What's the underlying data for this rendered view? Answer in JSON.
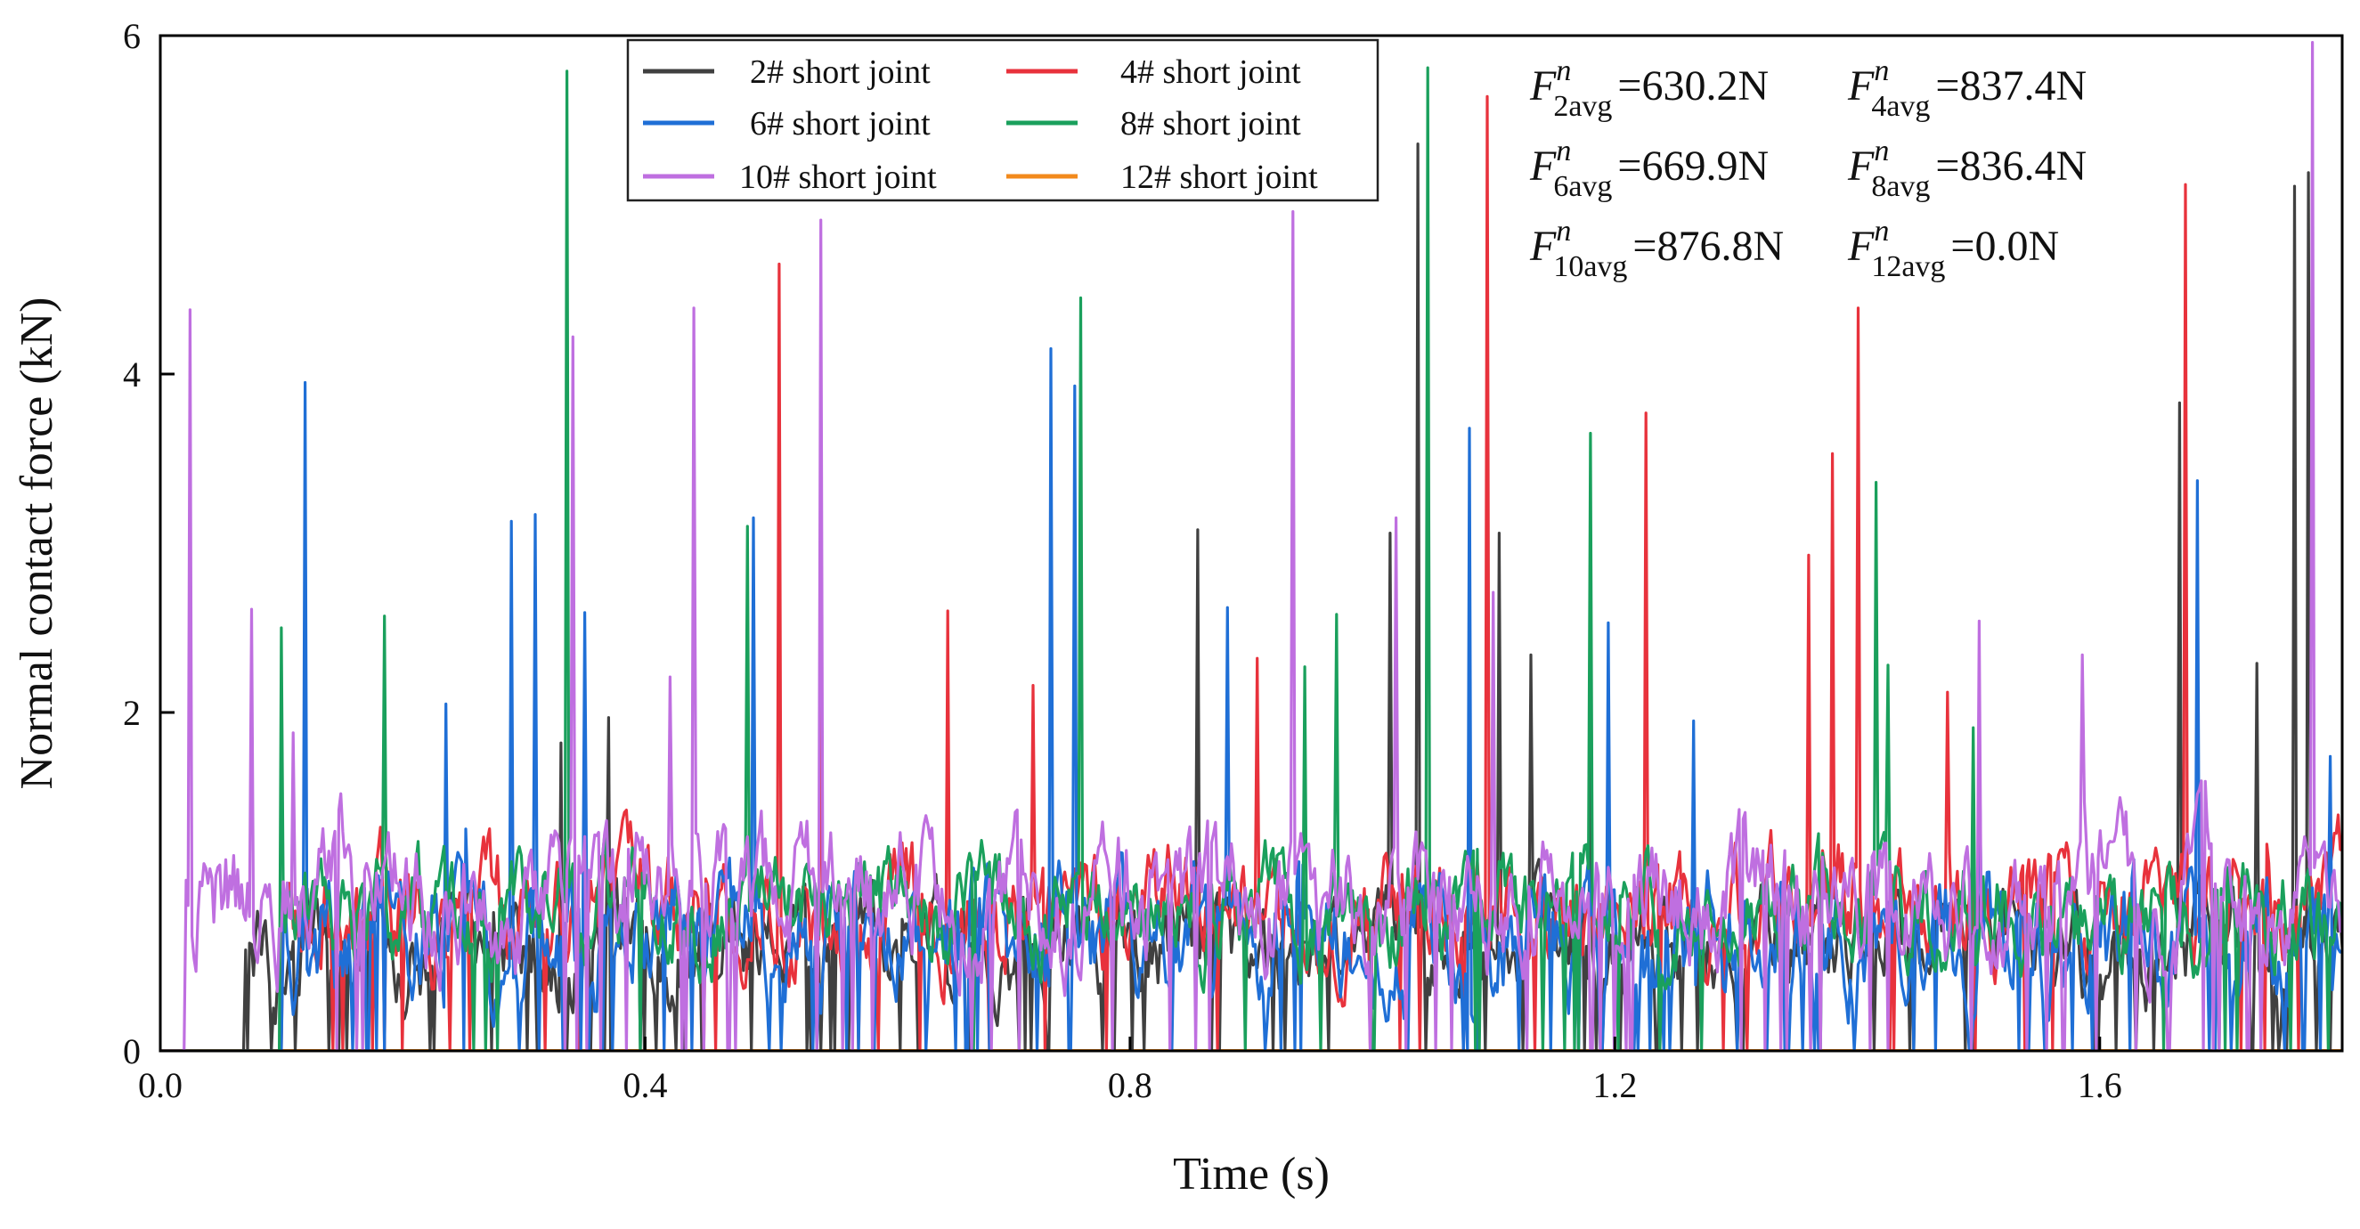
{
  "chart_data": {
    "type": "line",
    "xlabel": "Time (s)",
    "ylabel": "Normal contact force (kN)",
    "xlim": [
      0.0,
      1.8
    ],
    "ylim": [
      0,
      6
    ],
    "x_ticks": [
      {
        "value": 0.0,
        "label": "0.0"
      },
      {
        "value": 0.4,
        "label": "0.4"
      },
      {
        "value": 0.8,
        "label": "0.8"
      },
      {
        "value": 1.2,
        "label": "1.2"
      },
      {
        "value": 1.6,
        "label": "1.6"
      }
    ],
    "y_ticks": [
      {
        "value": 0,
        "label": "0"
      },
      {
        "value": 2,
        "label": "2"
      },
      {
        "value": 4,
        "label": "4"
      },
      {
        "value": 6,
        "label": "6"
      }
    ],
    "legend_position": "top-center",
    "series": [
      {
        "name": "2# short joint",
        "color": "#404040",
        "start": 0.07,
        "mean": 0.62,
        "noise": 0.45,
        "zero_dips": 0.08,
        "peaks": [
          [
            0.33,
            1.82
          ],
          [
            0.37,
            1.97
          ],
          [
            0.855,
            3.08
          ],
          [
            1.015,
            3.06
          ],
          [
            1.038,
            5.36
          ],
          [
            1.105,
            3.06
          ],
          [
            1.13,
            2.34
          ],
          [
            1.18,
            1.85
          ],
          [
            1.665,
            3.83
          ],
          [
            1.73,
            2.29
          ],
          [
            1.76,
            5.11
          ],
          [
            1.772,
            5.19
          ]
        ]
      },
      {
        "name": "4# short joint",
        "color": "#e8323c",
        "start": 0.1,
        "mean": 0.83,
        "noise": 0.5,
        "zero_dips": 0.04,
        "peaks": [
          [
            0.51,
            4.65
          ],
          [
            0.545,
            2.2
          ],
          [
            0.65,
            2.6
          ],
          [
            0.72,
            2.16
          ],
          [
            0.905,
            2.32
          ],
          [
            1.095,
            5.64
          ],
          [
            1.225,
            3.77
          ],
          [
            1.36,
            2.93
          ],
          [
            1.38,
            3.53
          ],
          [
            1.4,
            4.39
          ],
          [
            1.475,
            2.12
          ],
          [
            1.67,
            5.12
          ]
        ]
      },
      {
        "name": "6# short joint",
        "color": "#1f6fd6",
        "start": 0.1,
        "mean": 0.67,
        "noise": 0.55,
        "zero_dips": 0.07,
        "peaks": [
          [
            0.12,
            3.95
          ],
          [
            0.235,
            2.05
          ],
          [
            0.29,
            3.13
          ],
          [
            0.31,
            3.17
          ],
          [
            0.35,
            2.59
          ],
          [
            0.49,
            3.15
          ],
          [
            0.735,
            4.15
          ],
          [
            0.755,
            3.93
          ],
          [
            0.88,
            2.62
          ],
          [
            1.08,
            3.68
          ],
          [
            1.195,
            2.53
          ],
          [
            1.265,
            1.95
          ],
          [
            1.5,
            1.94
          ],
          [
            1.68,
            3.37
          ],
          [
            1.79,
            1.74
          ]
        ]
      },
      {
        "name": "8# short joint",
        "color": "#1aa05c",
        "start": 0.1,
        "mean": 0.84,
        "noise": 0.45,
        "zero_dips": 0.03,
        "peaks": [
          [
            0.1,
            2.5
          ],
          [
            0.185,
            2.57
          ],
          [
            0.335,
            5.79
          ],
          [
            0.485,
            3.1
          ],
          [
            0.76,
            4.45
          ],
          [
            0.945,
            2.27
          ],
          [
            0.97,
            2.58
          ],
          [
            1.045,
            5.81
          ],
          [
            1.18,
            3.65
          ],
          [
            1.415,
            3.36
          ],
          [
            1.425,
            2.28
          ],
          [
            1.495,
            1.91
          ]
        ]
      },
      {
        "name": "10# short joint",
        "color": "#bf6fe0",
        "start": 0.02,
        "mean": 0.9,
        "noise": 0.55,
        "zero_dips": 0.05,
        "peaks": [
          [
            0.025,
            4.38
          ],
          [
            0.075,
            2.61
          ],
          [
            0.11,
            1.88
          ],
          [
            0.34,
            4.22
          ],
          [
            0.44,
            4.39
          ],
          [
            0.42,
            2.21
          ],
          [
            0.545,
            4.91
          ],
          [
            0.935,
            4.96
          ],
          [
            1.02,
            3.15
          ],
          [
            1.1,
            2.71
          ],
          [
            1.5,
            2.54
          ],
          [
            1.585,
            2.34
          ],
          [
            1.775,
            5.96
          ]
        ]
      },
      {
        "name": "12# short joint",
        "color": "#f28a1c",
        "start": 0.0,
        "mean": 0.0,
        "noise": 0.0,
        "zero_dips": 0.0,
        "peaks": []
      }
    ],
    "annotations": [
      {
        "sub": "2avg",
        "value": "=630.2N"
      },
      {
        "sub": "4avg",
        "value": "=837.4N"
      },
      {
        "sub": "6avg",
        "value": "=669.9N"
      },
      {
        "sub": "8avg",
        "value": "=836.4N"
      },
      {
        "sub": "10avg",
        "value": "=876.8N"
      },
      {
        "sub": "12avg",
        "value": "=0.0N"
      }
    ],
    "annotation_symbol": "F",
    "annotation_superscript": "n"
  }
}
